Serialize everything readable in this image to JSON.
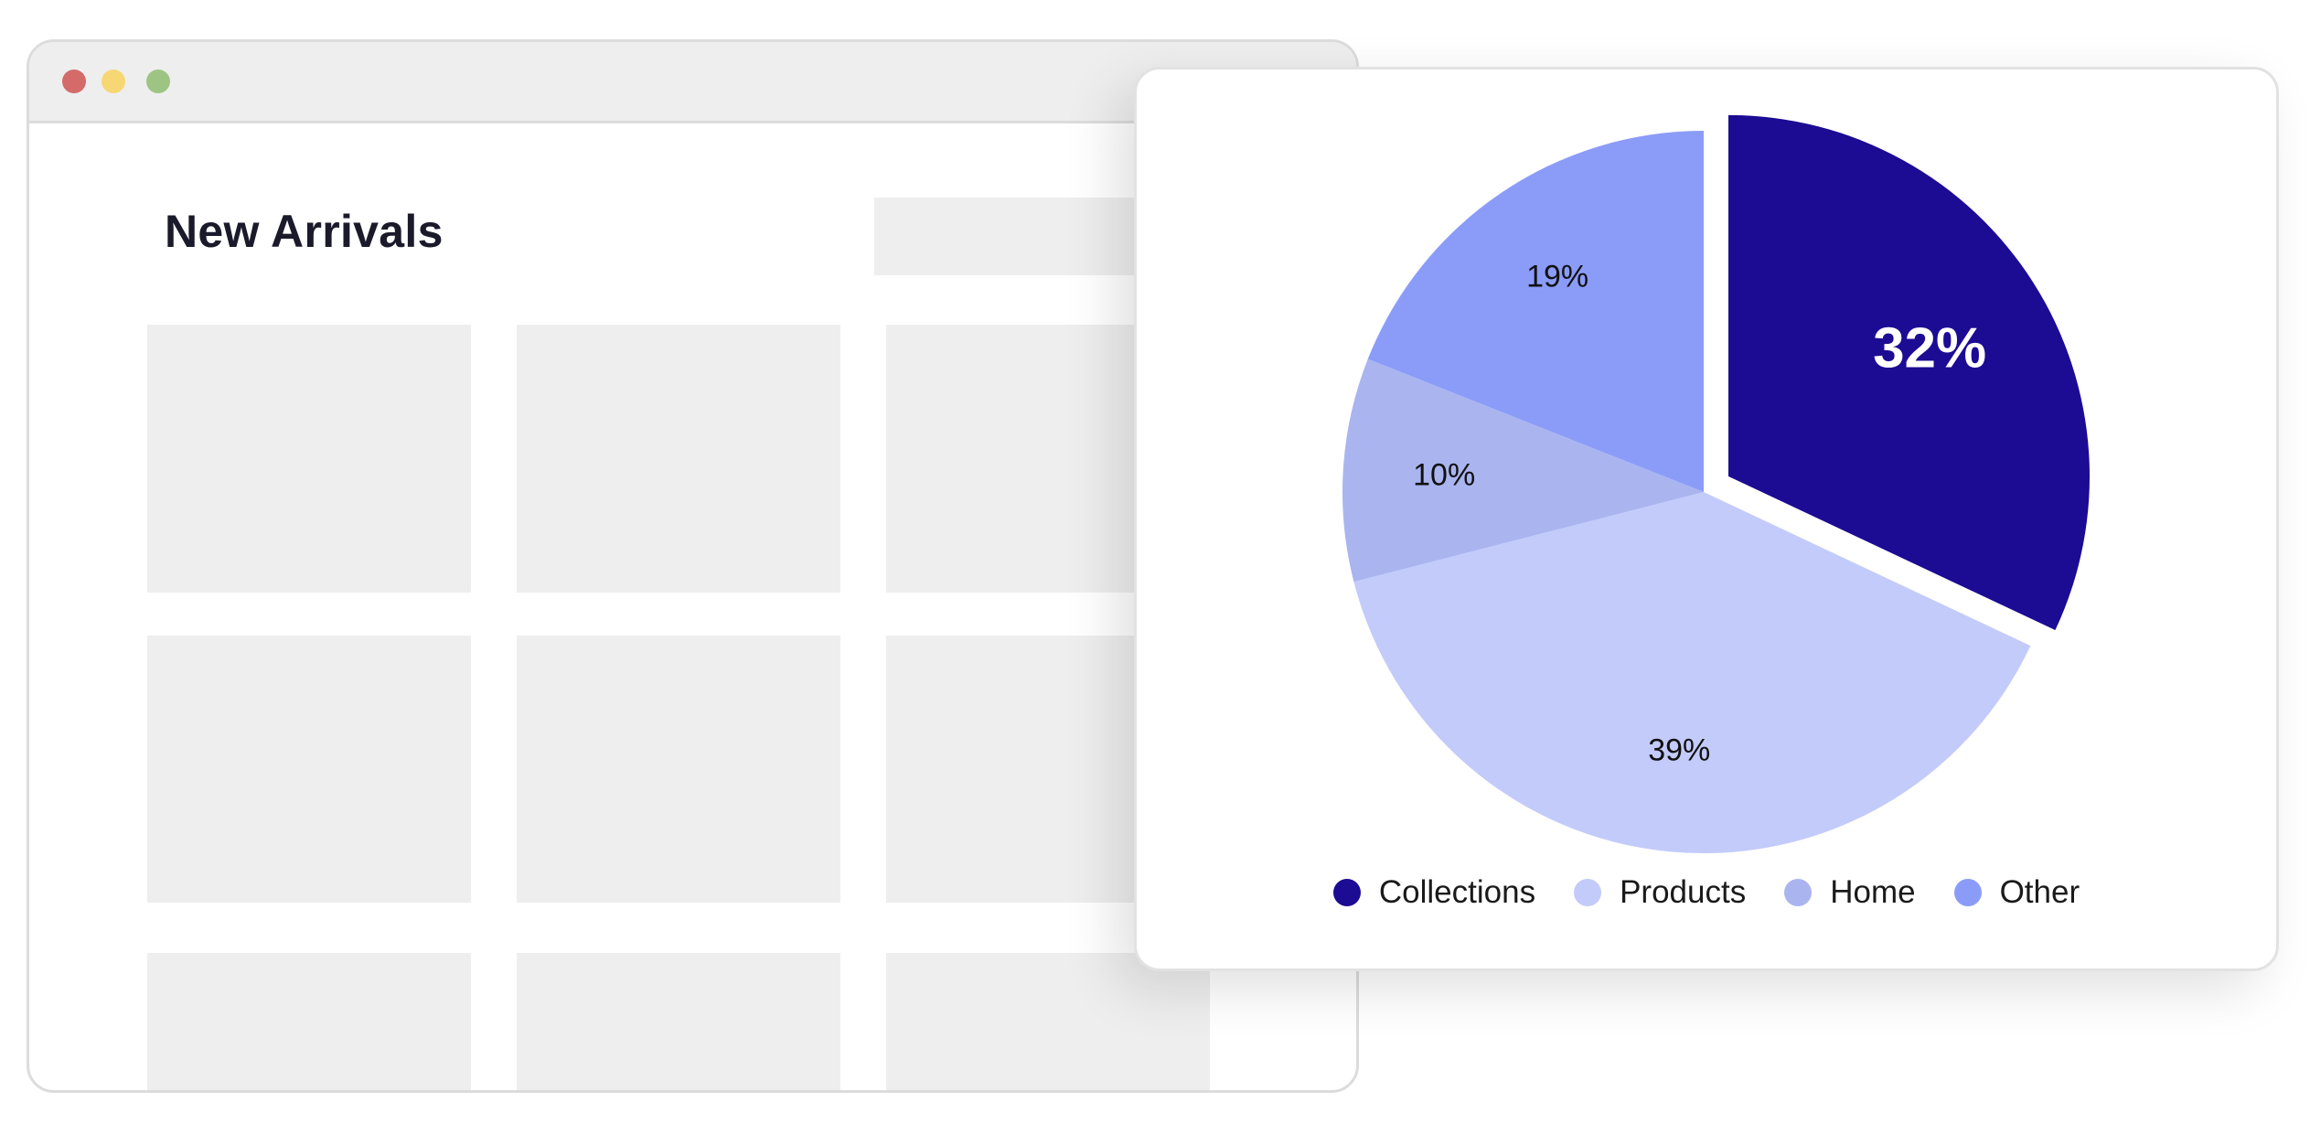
{
  "browser": {
    "traffic_lights": [
      {
        "name": "close",
        "color": "#d46a6a"
      },
      {
        "name": "minimize",
        "color": "#f7d774"
      },
      {
        "name": "maximize",
        "color": "#9dc483"
      }
    ],
    "page_title": "New Arrivals"
  },
  "chart_data": {
    "type": "pie",
    "title": "",
    "categories": [
      "Collections",
      "Products",
      "Home",
      "Other"
    ],
    "values": [
      32,
      39,
      10,
      19
    ],
    "labels": [
      "32%",
      "39%",
      "10%",
      "19%"
    ],
    "colors": [
      "#1c0b93",
      "#c3cbfa",
      "#aab5f0",
      "#8b9cf8"
    ],
    "exploded": "Collections",
    "legend_position": "bottom"
  },
  "legend": {
    "items": [
      {
        "label": "Collections",
        "color": "#1c0b93"
      },
      {
        "label": "Products",
        "color": "#c3cbfa"
      },
      {
        "label": "Home",
        "color": "#aab5f0"
      },
      {
        "label": "Other",
        "color": "#8b9cf8"
      }
    ]
  }
}
